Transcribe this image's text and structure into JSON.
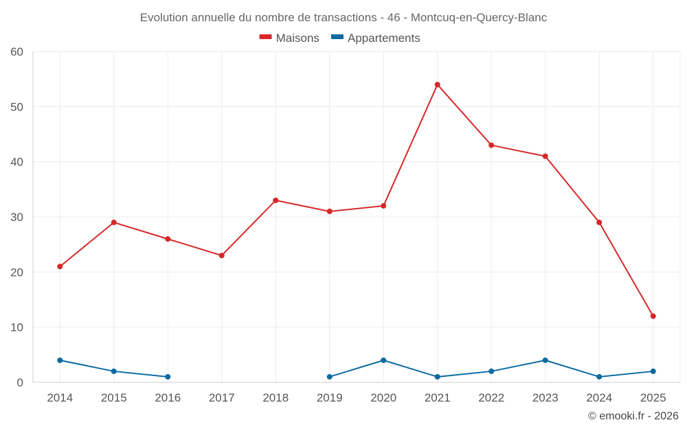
{
  "chart_data": {
    "type": "line",
    "title": "Evolution annuelle du nombre de transactions - 46 - Montcuq-en-Quercy-Blanc",
    "categories": [
      "2014",
      "2015",
      "2016",
      "2017",
      "2018",
      "2019",
      "2020",
      "2021",
      "2022",
      "2023",
      "2024",
      "2025"
    ],
    "series": [
      {
        "name": "Maisons",
        "color": "#d62728",
        "values": [
          21,
          29,
          26,
          23,
          33,
          31,
          32,
          54,
          43,
          41,
          29,
          12
        ]
      },
      {
        "name": "Appartements",
        "color": "#0b6aa2",
        "values": [
          4,
          2,
          1,
          null,
          null,
          1,
          4,
          1,
          2,
          4,
          1,
          2
        ]
      }
    ],
    "ylim": [
      0,
      60
    ],
    "yticks": [
      0,
      10,
      20,
      30,
      40,
      50,
      60
    ],
    "grid": true,
    "legend": "top-center",
    "xlabel": "",
    "ylabel": ""
  },
  "credit": "© emooki.fr - 2026"
}
